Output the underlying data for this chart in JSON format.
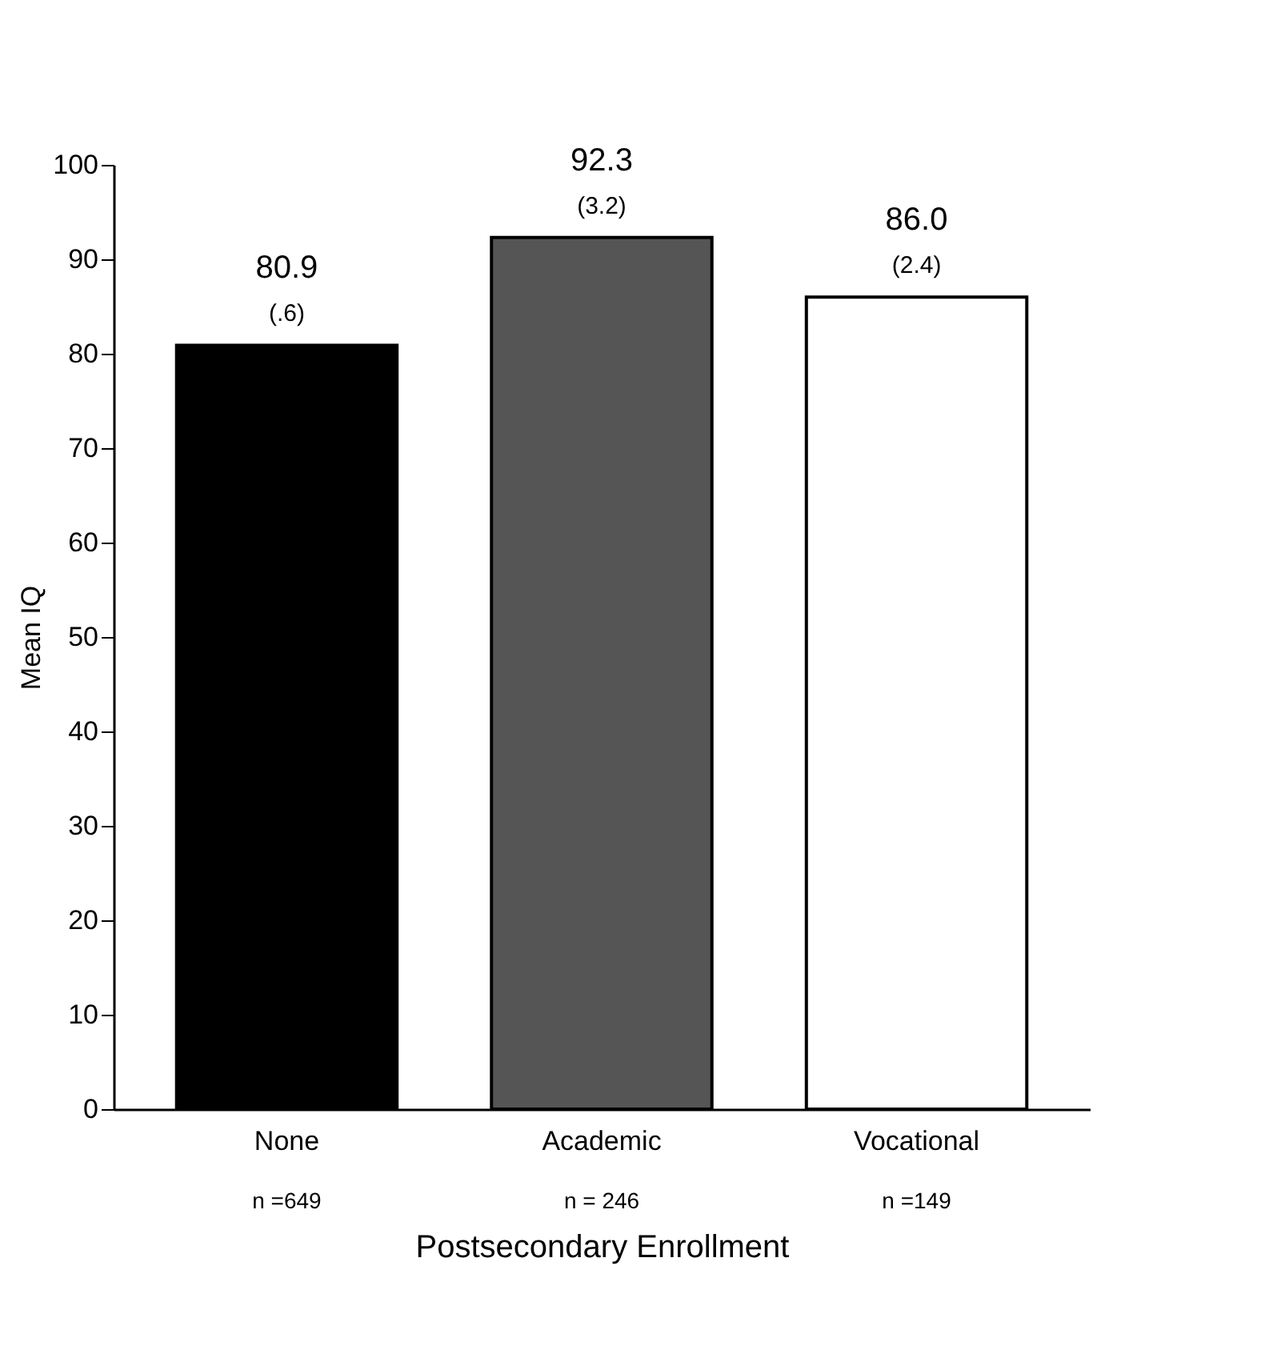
{
  "chart_data": {
    "type": "bar",
    "xlabel": "Postsecondary Enrollment",
    "ylabel": "Mean IQ",
    "categories": [
      "None",
      "Academic",
      "Vocational"
    ],
    "values": [
      80.9,
      92.3,
      86.0
    ],
    "value_labels": [
      "80.9",
      "92.3",
      "86.0"
    ],
    "colors": [
      "#000000",
      "#555555",
      "#ffffff"
    ],
    "ylim": [
      0,
      100
    ],
    "yticks": [
      0,
      10,
      20,
      30,
      40,
      50,
      60,
      70,
      80,
      90,
      100
    ],
    "grid": false,
    "annotations": [
      {
        "text": "(.6)",
        "x": "None",
        "y": 80.9
      },
      {
        "text": "(3.2)",
        "x": "Academic",
        "y": 92.3
      },
      {
        "text": "(2.4)",
        "x": "Vocational",
        "y": 86.0
      },
      "n =649",
      "n = 246",
      "n =149"
    ]
  }
}
